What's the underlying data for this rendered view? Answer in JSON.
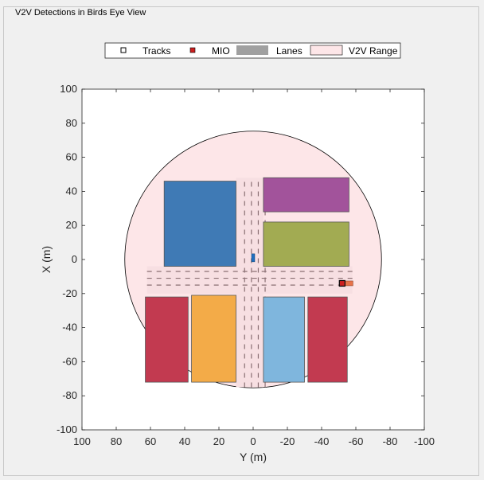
{
  "window": {
    "title": "V2V Detections in Birds Eye View"
  },
  "chart_data": {
    "type": "scatter",
    "title": "",
    "xlabel": "Y (m)",
    "ylabel": "X (m)",
    "xlim": [
      100,
      -100
    ],
    "ylim": [
      -100,
      100
    ],
    "xticks": [
      100,
      80,
      60,
      40,
      20,
      0,
      -20,
      -40,
      -60,
      -80,
      -100
    ],
    "yticks": [
      100,
      80,
      60,
      40,
      20,
      0,
      -20,
      -40,
      -60,
      -80,
      -100
    ],
    "grid": false,
    "legend_position": "top",
    "legend": [
      {
        "label": "Tracks",
        "marker": "square-outline",
        "color": "#000000"
      },
      {
        "label": "MIO",
        "marker": "square-filled",
        "color": "#cc1f1f"
      },
      {
        "label": "Lanes",
        "marker": "patch",
        "color": "#a0a0a0"
      },
      {
        "label": "V2V Range",
        "marker": "patch",
        "color": "#fde6e8"
      }
    ],
    "v2v_range": {
      "center": [
        0,
        0
      ],
      "radius": 75,
      "color": "#fde6e8"
    },
    "buildings": [
      {
        "y": [
          52,
          10
        ],
        "x": [
          -4,
          46
        ],
        "color": "#3f7ab5"
      },
      {
        "y": [
          -6,
          -56
        ],
        "x": [
          28,
          48
        ],
        "color": "#a2539b"
      },
      {
        "y": [
          -6,
          -56
        ],
        "x": [
          -4,
          22
        ],
        "color": "#a2ab52"
      },
      {
        "y": [
          63,
          38
        ],
        "x": [
          -72,
          -22
        ],
        "color": "#c23a50"
      },
      {
        "y": [
          36,
          10
        ],
        "x": [
          -72,
          -21
        ],
        "color": "#f3ab48"
      },
      {
        "y": [
          -6,
          -30
        ],
        "x": [
          -72,
          -22
        ],
        "color": "#7fb6dd"
      },
      {
        "y": [
          -32,
          -55
        ],
        "x": [
          -72,
          -22
        ],
        "color": "#c23a50"
      }
    ],
    "road_vertical": {
      "y": [
        10,
        -6
      ],
      "x": [
        -75,
        48
      ]
    },
    "road_horizontal": {
      "y": [
        62,
        -58
      ],
      "x": [
        -20,
        -4
      ]
    },
    "lanes": [
      {
        "y": [
          5,
          5
        ],
        "x": [
          -75,
          46
        ]
      },
      {
        "y": [
          1,
          1
        ],
        "x": [
          -75,
          46
        ]
      },
      {
        "y": [
          -3,
          -3
        ],
        "x": [
          -75,
          46
        ]
      },
      {
        "y": [
          -7,
          -7
        ],
        "x": [
          -75,
          46
        ]
      },
      {
        "y": [
          62,
          -58
        ],
        "x": [
          -15,
          -15
        ]
      },
      {
        "y": [
          62,
          -58
        ],
        "x": [
          -11,
          -11
        ]
      },
      {
        "y": [
          62,
          -58
        ],
        "x": [
          -7,
          -7
        ]
      }
    ],
    "ego_vehicle": {
      "y": 0,
      "x": 1,
      "color": "#1f6fc0"
    },
    "vehicles": [
      {
        "y": -56,
        "x": -14,
        "color": "#e8734a"
      }
    ],
    "tracks": [
      {
        "y": -52,
        "x": -14
      }
    ],
    "mio": [
      {
        "y": -52,
        "x": -14
      }
    ]
  }
}
